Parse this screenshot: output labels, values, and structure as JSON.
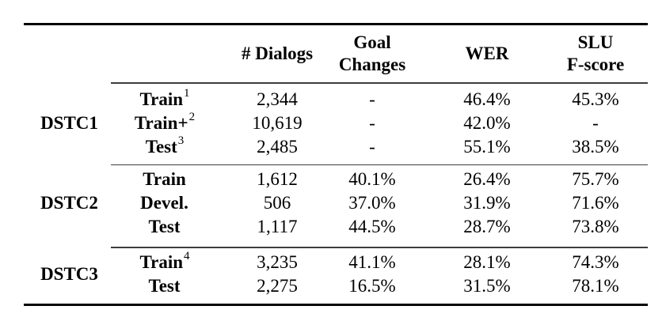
{
  "table": {
    "headers": {
      "dialogs": "# Dialogs",
      "goal_line1": "Goal",
      "goal_line2": "Changes",
      "wer": "WER",
      "slu_line1": "SLU",
      "slu_line2": "F-score"
    },
    "sections": [
      {
        "dataset": "DSTC1",
        "rows": [
          {
            "split": "Train",
            "sup": "1",
            "dialogs": "2,344",
            "goal_changes": "-",
            "wer": "46.4%",
            "slu_fscore": "45.3%"
          },
          {
            "split": "Train+",
            "sup": "2",
            "dialogs": "10,619",
            "goal_changes": "-",
            "wer": "42.0%",
            "slu_fscore": "-"
          },
          {
            "split": "Test",
            "sup": "3",
            "dialogs": "2,485",
            "goal_changes": "-",
            "wer": "55.1%",
            "slu_fscore": "38.5%"
          }
        ]
      },
      {
        "dataset": "DSTC2",
        "rows": [
          {
            "split": "Train",
            "sup": "",
            "dialogs": "1,612",
            "goal_changes": "40.1%",
            "wer": "26.4%",
            "slu_fscore": "75.7%"
          },
          {
            "split": "Devel.",
            "sup": "",
            "dialogs": "506",
            "goal_changes": "37.0%",
            "wer": "31.9%",
            "slu_fscore": "71.6%"
          },
          {
            "split": "Test",
            "sup": "",
            "dialogs": "1,117",
            "goal_changes": "44.5%",
            "wer": "28.7%",
            "slu_fscore": "73.8%"
          }
        ]
      },
      {
        "dataset": "DSTC3",
        "rows": [
          {
            "split": "Train",
            "sup": "4",
            "dialogs": "3,235",
            "goal_changes": "41.1%",
            "wer": "28.1%",
            "slu_fscore": "74.3%"
          },
          {
            "split": "Test",
            "sup": "",
            "dialogs": "2,275",
            "goal_changes": "16.5%",
            "wer": "31.5%",
            "slu_fscore": "78.1%"
          }
        ]
      }
    ]
  }
}
